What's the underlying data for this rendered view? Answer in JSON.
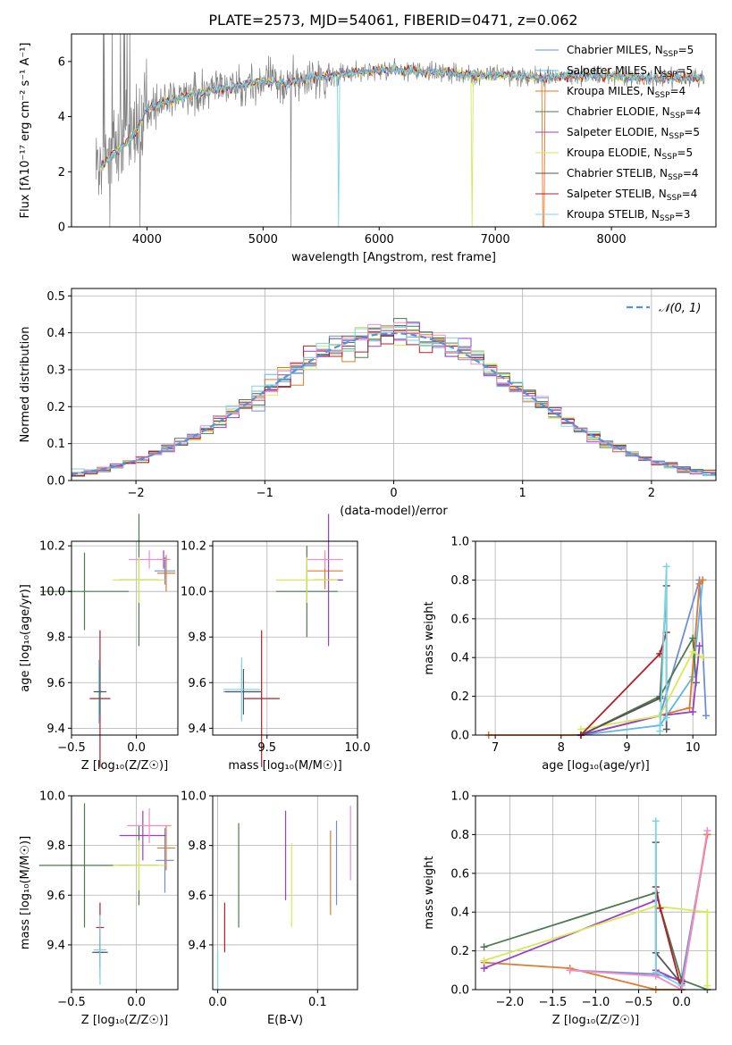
{
  "title": "PLATE=2573, MJD=54061, FIBERID=0471, z=0.062",
  "colors": [
    "#6e8fd6",
    "#5fb6ea",
    "#e07a2e",
    "#4e7a4e",
    "#9a3fc6",
    "#d7e85a",
    "#555555",
    "#b0202a",
    "#7ad6e0",
    "#f08cc8"
  ],
  "chart_data": [
    {
      "id": "spectrum",
      "type": "line",
      "xlabel": "wavelength [Angstrom, rest frame]",
      "ylabel": "Flux [fλ10⁻¹⁷ erg cm⁻² s⁻¹ A⁻¹]",
      "xlim": [
        3350,
        8900
      ],
      "ylim": [
        0,
        7
      ],
      "xticks": [
        4000,
        5000,
        6000,
        7000,
        8000
      ],
      "yticks": [
        0,
        2,
        4,
        6
      ],
      "legend_position": "top-right",
      "observed_profile": {
        "x": [
          3550,
          3700,
          3900,
          4000,
          4200,
          4400,
          4600,
          4800,
          5000,
          5200,
          5400,
          5600,
          5800,
          6000,
          6200,
          6400,
          6600,
          6800,
          7000,
          7200,
          7400,
          7600,
          7800,
          8000,
          8200,
          8400,
          8600,
          8800
        ],
        "y": [
          2.0,
          2.6,
          3.4,
          4.3,
          4.6,
          4.8,
          5.0,
          5.1,
          5.3,
          5.2,
          5.4,
          5.5,
          5.6,
          5.7,
          5.7,
          5.6,
          5.6,
          5.5,
          5.5,
          5.5,
          5.4,
          5.5,
          5.5,
          5.5,
          5.4,
          5.4,
          5.4,
          5.4
        ]
      },
      "legend": [
        {
          "label": "Chabrier MILES, N_SSP=5",
          "color": "#6e8fd6"
        },
        {
          "label": "Salpeter MILES, N_SSP=5",
          "color": "#5fb6ea"
        },
        {
          "label": "Kroupa MILES, N_SSP=4",
          "color": "#e07a2e"
        },
        {
          "label": "Chabrier ELODIE, N_SSP=4",
          "color": "#4e7a4e"
        },
        {
          "label": "Salpeter ELODIE, N_SSP=5",
          "color": "#9a3fc6"
        },
        {
          "label": "Kroupa ELODIE, N_SSP=5",
          "color": "#d7e85a"
        },
        {
          "label": "Chabrier STELIB, N_SSP=4",
          "color": "#555555"
        },
        {
          "label": "Salpeter STELIB, N_SSP=4",
          "color": "#b0202a"
        },
        {
          "label": "Kroupa STELIB, N_SSP=3",
          "color": "#7ad6e0"
        }
      ]
    },
    {
      "id": "residuals",
      "type": "line",
      "xlabel": "(data-model)/error",
      "ylabel": "Normed distribution",
      "xlim": [
        -2.5,
        2.5
      ],
      "ylim": [
        0,
        0.52
      ],
      "xticks": [
        -2,
        -1,
        0,
        1,
        2
      ],
      "yticks": [
        0.0,
        0.1,
        0.2,
        0.3,
        0.4,
        0.5
      ],
      "grid": true,
      "legend": "𝒩(0, 1)",
      "legend_position": "top-right",
      "bin_width": 0.1
    },
    {
      "id": "age_vs_Z",
      "type": "scatter",
      "xlabel": "Z [log₁₀(Z/Z☉)]",
      "ylabel": "age  [log₁₀(age/yr)]",
      "xlim": [
        -0.5,
        0.32
      ],
      "ylim": [
        9.37,
        10.22
      ],
      "xticks": [
        -0.5,
        0.0
      ],
      "yticks": [
        9.4,
        9.6,
        9.8,
        10.0,
        10.2
      ],
      "grid": true,
      "points": [
        {
          "x": -0.28,
          "y": 9.56,
          "xerr": 0.02,
          "yerr": 0.13,
          "c": 0
        },
        {
          "x": 0.22,
          "y": 10.09,
          "xerr": 0.08,
          "yerr": 0.06,
          "c": 0
        },
        {
          "x": 0.02,
          "y": 10.05,
          "xerr": 0.15,
          "yerr": 0.29,
          "c": 3
        },
        {
          "x": -0.4,
          "y": 10.0,
          "xerr": 0.34,
          "yerr": 0.17,
          "c": 3
        },
        {
          "x": -0.29,
          "y": 9.56,
          "xerr": 0.03,
          "yerr": 0.14,
          "c": 8
        },
        {
          "x": 0.21,
          "y": 10.14,
          "xerr": 0.05,
          "yerr": 0.04,
          "c": 4
        },
        {
          "x": -0.28,
          "y": 9.53,
          "xerr": 0.08,
          "yerr": 0.3,
          "c": 7
        },
        {
          "x": -0.28,
          "y": 9.56,
          "xerr": 0.05,
          "yerr": 0.1,
          "c": 6
        },
        {
          "x": 0.23,
          "y": 10.08,
          "xerr": 0.07,
          "yerr": 0.08,
          "c": 2
        },
        {
          "x": 0.1,
          "y": 10.14,
          "xerr": 0.16,
          "yerr": 0.04,
          "c": 9
        },
        {
          "x": 0.02,
          "y": 10.05,
          "xerr": 0.2,
          "yerr": 0.1,
          "c": 5
        }
      ]
    },
    {
      "id": "age_vs_mass",
      "type": "scatter",
      "xlabel": "mass [log₁₀(M/M☉)]",
      "ylabel": "",
      "xlim": [
        9.2,
        10.0
      ],
      "ylim": [
        9.37,
        10.22
      ],
      "xticks": [
        9.5,
        10.0
      ],
      "yticks": [
        9.4,
        9.6,
        9.8,
        10.0,
        10.2
      ],
      "grid": true,
      "points": [
        {
          "x": 9.36,
          "y": 9.56,
          "xerr": 0.1,
          "yerr": 0.12,
          "c": 0
        },
        {
          "x": 9.82,
          "y": 10.09,
          "xerr": 0.1,
          "yerr": 0.08,
          "c": 2
        },
        {
          "x": 9.72,
          "y": 10.0,
          "xerr": 0.17,
          "yerr": 0.2,
          "c": 3
        },
        {
          "x": 9.84,
          "y": 10.05,
          "xerr": 0.08,
          "yerr": 0.29,
          "c": 4
        },
        {
          "x": 9.47,
          "y": 9.53,
          "xerr": 0.1,
          "yerr": 0.3,
          "c": 7
        },
        {
          "x": 9.37,
          "y": 9.56,
          "xerr": 0.1,
          "yerr": 0.1,
          "c": 6
        },
        {
          "x": 9.36,
          "y": 9.57,
          "xerr": 0.1,
          "yerr": 0.14,
          "c": 8
        },
        {
          "x": 9.82,
          "y": 10.14,
          "xerr": 0.1,
          "yerr": 0.04,
          "c": 9
        },
        {
          "x": 9.72,
          "y": 10.05,
          "xerr": 0.17,
          "yerr": 0.1,
          "c": 5
        }
      ]
    },
    {
      "id": "massweight_vs_age",
      "type": "line",
      "xlabel": "age  [log₁₀(age/yr)]",
      "ylabel": "mass weight",
      "xlim": [
        6.7,
        10.35
      ],
      "ylim": [
        0,
        1.0
      ],
      "xticks": [
        7,
        8,
        9,
        10
      ],
      "yticks": [
        0.0,
        0.2,
        0.4,
        0.6,
        0.8,
        1.0
      ],
      "grid": true,
      "series": [
        {
          "c": 0,
          "x": [
            8.3,
            9.5,
            10.1,
            10.2
          ],
          "y": [
            0.0,
            0.1,
            0.8,
            0.1
          ]
        },
        {
          "c": 1,
          "x": [
            8.3,
            9.5,
            10.0,
            10.15
          ],
          "y": [
            0.0,
            0.05,
            0.3,
            0.8
          ]
        },
        {
          "c": 2,
          "x": [
            6.9,
            8.3,
            9.95,
            10.1,
            10.15
          ],
          "y": [
            0.0,
            0.0,
            0.14,
            0.78,
            0.8
          ]
        },
        {
          "c": 3,
          "x": [
            8.3,
            9.5,
            10.0,
            10.05
          ],
          "y": [
            0.0,
            0.2,
            0.5,
            0.27
          ]
        },
        {
          "c": 4,
          "x": [
            8.3,
            9.5,
            10.0,
            10.1
          ],
          "y": [
            0.0,
            0.1,
            0.12,
            0.46
          ]
        },
        {
          "c": 5,
          "x": [
            8.3,
            9.5,
            10.0,
            10.15
          ],
          "y": [
            0.03,
            0.1,
            0.43,
            0.4
          ]
        },
        {
          "c": 6,
          "x": [
            8.3,
            9.5,
            9.6,
            9.6
          ],
          "y": [
            0.0,
            0.19,
            0.77,
            0.03
          ]
        },
        {
          "c": 7,
          "x": [
            8.3,
            9.5,
            9.6
          ],
          "y": [
            0.0,
            0.42,
            0.53
          ]
        },
        {
          "c": 8,
          "x": [
            9.5,
            9.6,
            9.6
          ],
          "y": [
            0.02,
            0.87,
            0.09
          ]
        }
      ]
    },
    {
      "id": "mass_vs_Z",
      "type": "scatter",
      "xlabel": "Z [log₁₀(Z/Z☉)]",
      "ylabel": "mass [log₁₀(M/M☉)]",
      "xlim": [
        -0.5,
        0.32
      ],
      "ylim": [
        9.22,
        10.0
      ],
      "xticks": [
        -0.5,
        0.0
      ],
      "yticks": [
        9.4,
        9.6,
        9.8,
        10.0
      ],
      "grid": true,
      "points": [
        {
          "x": -0.28,
          "y": 9.37,
          "xerr": 0.03,
          "yerr": 0.1,
          "c": 0
        },
        {
          "x": 0.22,
          "y": 9.74,
          "xerr": 0.07,
          "yerr": 0.13,
          "c": 0
        },
        {
          "x": 0.02,
          "y": 9.72,
          "xerr": 0.15,
          "yerr": 0.16,
          "c": 3
        },
        {
          "x": -0.4,
          "y": 9.72,
          "xerr": 0.35,
          "yerr": 0.25,
          "c": 3
        },
        {
          "x": 0.05,
          "y": 9.84,
          "xerr": 0.18,
          "yerr": 0.1,
          "c": 4
        },
        {
          "x": -0.28,
          "y": 9.47,
          "xerr": 0.03,
          "yerr": 0.1,
          "c": 7
        },
        {
          "x": -0.28,
          "y": 9.37,
          "xerr": 0.06,
          "yerr": 0.06,
          "c": 6
        },
        {
          "x": -0.28,
          "y": 9.38,
          "xerr": 0.05,
          "yerr": 0.14,
          "c": 8
        },
        {
          "x": 0.23,
          "y": 9.79,
          "xerr": 0.07,
          "yerr": 0.09,
          "c": 2
        },
        {
          "x": 0.1,
          "y": 9.88,
          "xerr": 0.17,
          "yerr": 0.07,
          "c": 9
        },
        {
          "x": 0.02,
          "y": 9.72,
          "xerr": 0.2,
          "yerr": 0.1,
          "c": 5
        }
      ]
    },
    {
      "id": "ebv",
      "type": "scatter",
      "xlabel": "E(B-V)",
      "ylabel": "",
      "xlim": [
        -0.005,
        0.14
      ],
      "ylim": [
        9.22,
        10.0
      ],
      "xticks": [
        0.0,
        0.1
      ],
      "yticks": [
        9.4,
        9.6,
        9.8,
        10.0
      ],
      "grid": true,
      "points": [
        {
          "x": 0.0,
          "y": 9.3,
          "yerr": 0.08,
          "c": 8
        },
        {
          "x": 0.007,
          "y": 9.47,
          "yerr": 0.1,
          "c": 7
        },
        {
          "x": 0.021,
          "y": 9.68,
          "yerr": 0.21,
          "c": 3
        },
        {
          "x": 0.068,
          "y": 9.76,
          "yerr": 0.18,
          "c": 4
        },
        {
          "x": 0.074,
          "y": 9.64,
          "yerr": 0.17,
          "c": 5
        },
        {
          "x": 0.113,
          "y": 9.69,
          "yerr": 0.17,
          "c": 2
        },
        {
          "x": 0.119,
          "y": 9.73,
          "yerr": 0.17,
          "c": 0
        },
        {
          "x": 0.133,
          "y": 9.81,
          "yerr": 0.15,
          "c": 9
        }
      ]
    },
    {
      "id": "massweight_vs_Z",
      "type": "line",
      "xlabel": "Z [log₁₀(Z/Z☉)]",
      "ylabel": "mass weight",
      "xlim": [
        -2.4,
        0.4
      ],
      "ylim": [
        0,
        1.0
      ],
      "xticks": [
        -2.0,
        -1.5,
        -1.0,
        -0.5,
        0.0
      ],
      "yticks": [
        0.0,
        0.2,
        0.4,
        0.6,
        0.8,
        1.0
      ],
      "grid": true,
      "series": [
        {
          "c": 0,
          "x": [
            -1.3,
            -0.3,
            0.0,
            0.3
          ],
          "y": [
            0.1,
            0.08,
            0.05,
            0.8
          ]
        },
        {
          "c": 2,
          "x": [
            -2.3,
            -1.3,
            -0.3,
            0.0,
            0.3
          ],
          "y": [
            0.14,
            0.11,
            0.0,
            0.0,
            0.8
          ]
        },
        {
          "c": 3,
          "x": [
            -2.3,
            -0.3,
            0.0,
            0.3
          ],
          "y": [
            0.22,
            0.5,
            0.05,
            0.0
          ]
        },
        {
          "c": 4,
          "x": [
            -2.3,
            -0.3,
            -0.3,
            0.0
          ],
          "y": [
            0.11,
            0.46,
            0.1,
            0.04
          ]
        },
        {
          "c": 5,
          "x": [
            -2.3,
            -0.3,
            0.3,
            0.3
          ],
          "y": [
            0.15,
            0.43,
            0.4,
            0.02
          ]
        },
        {
          "c": 6,
          "x": [
            -0.3,
            -0.3,
            0.0
          ],
          "y": [
            0.76,
            0.19,
            0.03
          ]
        },
        {
          "c": 7,
          "x": [
            -0.3,
            -0.25,
            0.0
          ],
          "y": [
            0.53,
            0.42,
            0.0
          ]
        },
        {
          "c": 8,
          "x": [
            -0.3,
            -0.3,
            0.0
          ],
          "y": [
            0.87,
            0.09,
            0.02
          ]
        },
        {
          "c": 9,
          "x": [
            -1.3,
            -0.3,
            0.0,
            0.3
          ],
          "y": [
            0.1,
            0.07,
            0.0,
            0.82
          ]
        }
      ]
    }
  ]
}
